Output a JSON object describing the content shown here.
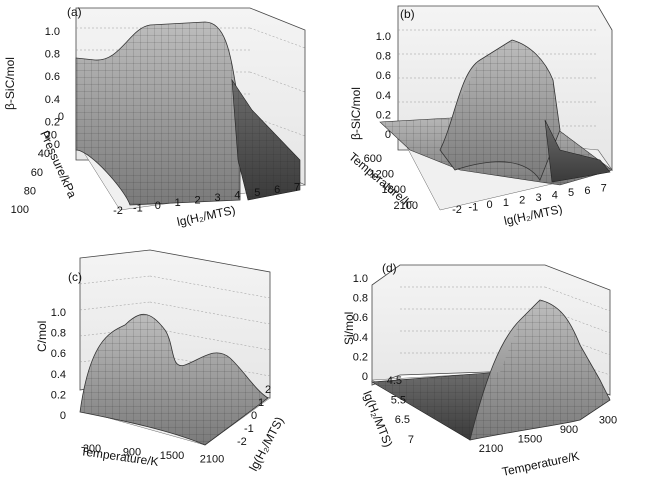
{
  "chart_data": [
    {
      "type": "surface3d",
      "panel_label": "(a)",
      "zlabel": "β-SiC/mol",
      "xlabel": "lg(H₂/MTS)",
      "ylabel": "Pressure/kPa",
      "zticks": [
        "0",
        "0.2",
        "0.4",
        "0.6",
        "0.8",
        "1.0"
      ],
      "xticks": [
        "-2",
        "-1",
        "0",
        "1",
        "2",
        "3",
        "4",
        "5",
        "6",
        "7"
      ],
      "yticks": [
        "0",
        "20",
        "40",
        "60",
        "80",
        "100"
      ],
      "zlim": [
        0,
        1.0
      ],
      "xlim": [
        -2,
        7
      ],
      "ylim": [
        0,
        100
      ],
      "note": "β-SiC ≈ 0.6 at low lg(H2/MTS), rises to ≈ 0.95 for lg(H2/MTS) between about 1 and 3.5, then drops to ≈ 0 above about 4.5; nearly independent of pressure"
    },
    {
      "type": "surface3d",
      "panel_label": "(b)",
      "zlabel": "β-SiC/mol",
      "xlabel": "lg(H₂/MTS)",
      "ylabel": "Temperature/K",
      "zticks": [
        "0",
        "0.2",
        "0.4",
        "0.6",
        "0.8",
        "1.0"
      ],
      "xticks": [
        "-2",
        "-1",
        "0",
        "1",
        "2",
        "3",
        "4",
        "5",
        "6",
        "7"
      ],
      "yticks": [
        "600",
        "1200",
        "1800",
        "2100"
      ],
      "zlim": [
        0,
        1.0
      ],
      "xlim": [
        -2,
        7
      ],
      "ylim": [
        300,
        2100
      ],
      "note": "β-SiC peaks near 0.95 for high temperature and lg(H2/MTS) 1–3.5; near 0.2 at low temperature; drops to ≈ 0 above lg(H2/MTS) ≈ 4.5"
    },
    {
      "type": "surface3d",
      "panel_label": "(c)",
      "zlabel": "C/mol",
      "xlabel": "Temperature/K",
      "ylabel": "lg(H₂/MTS)",
      "zticks": [
        "0",
        "0.2",
        "0.4",
        "0.6",
        "0.8",
        "1.0"
      ],
      "xticks": [
        "300",
        "900",
        "1500",
        "2100"
      ],
      "yticks": [
        "-2",
        "-1",
        "0",
        "1",
        "2"
      ],
      "zlim": [
        0,
        1.0
      ],
      "xlim": [
        300,
        2100
      ],
      "ylim": [
        -2,
        2
      ],
      "note": "free carbon peaks near 0.85 at low lg(H2/MTS) and mid temperature; a secondary ridge near 0.3–0.4 at high temperature"
    },
    {
      "type": "surface3d",
      "panel_label": "(d)",
      "zlabel": "Si/mol",
      "xlabel": "Temperature/K",
      "ylabel": "lg(H₂/MTS)",
      "zticks": [
        "0",
        "0.2",
        "0.4",
        "0.6",
        "0.8",
        "1.0"
      ],
      "xticks": [
        "2100",
        "1500",
        "900",
        "300"
      ],
      "yticks": [
        "4.5",
        "5.5",
        "6.5",
        "7"
      ],
      "zlim": [
        0,
        1.0
      ],
      "xlim": [
        300,
        2100
      ],
      "ylim": [
        4.5,
        7
      ],
      "note": "free silicon ≈ 0 at low lg(H2/MTS); rises to ≈ 0.8 at high lg(H2/MTS) and temperatures around 900–1500 K"
    }
  ]
}
